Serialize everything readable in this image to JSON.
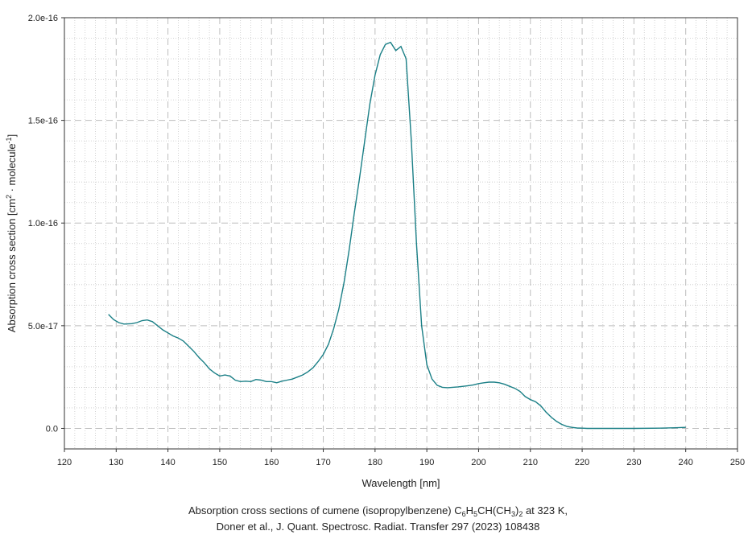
{
  "chart_data": {
    "type": "line",
    "xlabel": "Wavelength [nm]",
    "ylabel": "Absorption cross section [cm² · molecule⁻¹]",
    "xlim": [
      120,
      250
    ],
    "ylim": [
      -1e-17,
      2e-16
    ],
    "x_ticks": [
      120,
      130,
      140,
      150,
      160,
      170,
      180,
      190,
      200,
      210,
      220,
      230,
      240,
      250
    ],
    "y_ticks": [
      {
        "value": 0,
        "label": "0.0"
      },
      {
        "value": 5e-17,
        "label": "5.0e-17"
      },
      {
        "value": 1e-16,
        "label": "1.0e-16"
      },
      {
        "value": 1.5e-16,
        "label": "1.5e-16"
      },
      {
        "value": 2e-16,
        "label": "2.0e-16"
      }
    ],
    "grid": true,
    "line_color": "#1a7f86",
    "series": [
      {
        "x": [
          128.5,
          129.5,
          130.5,
          131.5,
          133,
          134,
          135,
          136,
          137,
          138,
          139,
          140,
          141,
          142,
          143,
          144,
          145,
          146,
          147,
          148,
          149,
          150,
          151,
          152,
          153,
          154,
          155,
          156,
          157,
          158,
          159,
          160,
          161,
          162,
          163,
          164,
          165,
          166,
          167,
          168,
          169,
          170,
          171,
          172,
          173,
          174,
          175,
          176,
          177,
          178,
          179,
          180,
          181,
          182,
          183,
          184,
          185,
          186,
          187,
          188,
          189,
          190,
          191,
          192,
          193,
          194,
          195,
          196,
          197,
          198,
          199,
          200,
          201,
          202,
          203,
          204,
          205,
          206,
          207,
          208,
          209,
          210,
          211,
          212,
          213,
          214,
          215,
          216,
          217,
          218,
          219,
          220,
          221,
          222,
          225,
          230,
          235,
          238,
          240
        ],
        "y": [
          5.55e-17,
          5.3e-17,
          5.15e-17,
          5.08e-17,
          5.1e-17,
          5.15e-17,
          5.25e-17,
          5.28e-17,
          5.2e-17,
          5e-17,
          4.8e-17,
          4.65e-17,
          4.5e-17,
          4.4e-17,
          4.25e-17,
          4e-17,
          3.75e-17,
          3.45e-17,
          3.2e-17,
          2.9e-17,
          2.7e-17,
          2.55e-17,
          2.6e-17,
          2.55e-17,
          2.35e-17,
          2.28e-17,
          2.3e-17,
          2.28e-17,
          2.38e-17,
          2.35e-17,
          2.28e-17,
          2.28e-17,
          2.22e-17,
          2.3e-17,
          2.35e-17,
          2.4e-17,
          2.5e-17,
          2.6e-17,
          2.75e-17,
          2.95e-17,
          3.25e-17,
          3.6e-17,
          4.1e-17,
          4.85e-17,
          5.8e-17,
          7.1e-17,
          8.7e-17,
          1.05e-16,
          1.22e-16,
          1.4e-16,
          1.58e-16,
          1.72e-16,
          1.82e-16,
          1.87e-16,
          1.88e-16,
          1.84e-16,
          1.86e-16,
          1.8e-16,
          1.4e-16,
          9e-17,
          5e-17,
          3.1e-17,
          2.4e-17,
          2.1e-17,
          2e-17,
          1.98e-17,
          2e-17,
          2.02e-17,
          2.05e-17,
          2.08e-17,
          2.12e-17,
          2.18e-17,
          2.22e-17,
          2.25e-17,
          2.25e-17,
          2.22e-17,
          2.15e-17,
          2.05e-17,
          1.95e-17,
          1.8e-17,
          1.55e-17,
          1.4e-17,
          1.3e-17,
          1.1e-17,
          8e-18,
          5.5e-18,
          3.5e-18,
          2e-18,
          1e-18,
          5e-19,
          2e-19,
          1e-19,
          0,
          0,
          0,
          0,
          1e-19,
          3e-19,
          5e-19
        ]
      }
    ]
  },
  "caption": {
    "line1_pre": "Absorption cross sections of cumene (isopropylbenzene) C",
    "sub1": "6",
    "mid1": "H",
    "sub2": "5",
    "mid2": "CH(CH",
    "sub3": "3",
    "mid3": ")",
    "sub4": "2",
    "line1_post": " at 323 K,",
    "line2": "Doner et al., J. Quant. Spectrosc. Radiat. Transfer 297 (2023) 108438"
  }
}
